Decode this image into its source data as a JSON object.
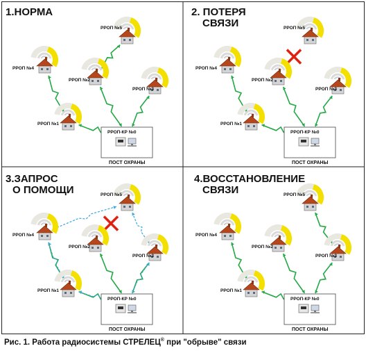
{
  "panels": [
    {
      "title_lines": [
        "1.НОРМА"
      ],
      "post_box": {
        "node": "РРОП-КР №0",
        "post": "ПОСТ ОХРАНЫ"
      },
      "nodes": [
        {
          "id": "n5",
          "label": "РРОП №5"
        },
        {
          "id": "n4",
          "label": "РРОП №4"
        },
        {
          "id": "n2",
          "label": "РРОП №2"
        },
        {
          "id": "n3",
          "label": "РРОП №3"
        },
        {
          "id": "n1",
          "label": "РРОП №1"
        }
      ],
      "links": [
        {
          "from": "n5",
          "to": "n2",
          "kind": "solid"
        },
        {
          "from": "n4",
          "to": "n1",
          "kind": "solid"
        },
        {
          "from": "n2",
          "to": "post",
          "kind": "solid"
        },
        {
          "from": "n3",
          "to": "post",
          "kind": "solid"
        },
        {
          "from": "n1",
          "to": "post",
          "kind": "solid"
        }
      ],
      "broken_links": []
    },
    {
      "title_lines": [
        "2. ПОТЕРЯ",
        "СВЯЗИ"
      ],
      "post_box": {
        "node": "РРОП-КР №0",
        "post": "ПОСТ ОХРАНЫ"
      },
      "nodes": [
        {
          "id": "n5",
          "label": "РРОП №5"
        },
        {
          "id": "n4",
          "label": "РРОП №4"
        },
        {
          "id": "n2",
          "label": "РРОП №2"
        },
        {
          "id": "n3",
          "label": "РРОП №3"
        },
        {
          "id": "n1",
          "label": "РРОП №1"
        }
      ],
      "links": [
        {
          "from": "n4",
          "to": "n1",
          "kind": "solid"
        },
        {
          "from": "n2",
          "to": "post",
          "kind": "solid"
        },
        {
          "from": "n3",
          "to": "post",
          "kind": "solid"
        },
        {
          "from": "n1",
          "to": "post",
          "kind": "solid"
        }
      ],
      "broken_links": [
        {
          "from": "n5",
          "to": "n2"
        }
      ]
    },
    {
      "title_lines": [
        "3.ЗАПРОС",
        "О ПОМОЩИ"
      ],
      "post_box": {
        "node": "РРОП-КР №0",
        "post": "ПОСТ ОХРАНЫ"
      },
      "nodes": [
        {
          "id": "n5",
          "label": "РРОП №5"
        },
        {
          "id": "n4",
          "label": "РРОП №4"
        },
        {
          "id": "n2",
          "label": "РРОП №2"
        },
        {
          "id": "n3",
          "label": "РРОП №3"
        },
        {
          "id": "n1",
          "label": "РРОП №1"
        }
      ],
      "links": [
        {
          "from": "n4",
          "to": "n1",
          "kind": "solid"
        },
        {
          "from": "n2",
          "to": "post",
          "kind": "solid"
        },
        {
          "from": "n3",
          "to": "post",
          "kind": "solid"
        },
        {
          "from": "n1",
          "to": "post",
          "kind": "solid"
        },
        {
          "from": "n5",
          "to": "n4",
          "kind": "dashed"
        },
        {
          "from": "n5",
          "to": "n3",
          "kind": "dashed"
        },
        {
          "from": "n4",
          "to": "n1",
          "kind": "dashed"
        },
        {
          "from": "n3",
          "to": "post",
          "kind": "dashed"
        },
        {
          "from": "n1",
          "to": "post",
          "kind": "dashed"
        }
      ],
      "broken_links": [
        {
          "from": "n5",
          "to": "n2"
        }
      ]
    },
    {
      "title_lines": [
        "4.ВОССТАНОВЛЕНИЕ",
        "СВЯЗИ"
      ],
      "post_box": {
        "node": "РРОП-КР №0",
        "post": "ПОСТ ОХРАНЫ"
      },
      "nodes": [
        {
          "id": "n5",
          "label": "РРОП №5"
        },
        {
          "id": "n4",
          "label": "РРОП №4"
        },
        {
          "id": "n2",
          "label": "РРОП №2"
        },
        {
          "id": "n3",
          "label": "РРОП №3"
        },
        {
          "id": "n1",
          "label": "РРОП №1"
        }
      ],
      "links": [
        {
          "from": "n5",
          "to": "n3",
          "kind": "solid"
        },
        {
          "from": "n4",
          "to": "n1",
          "kind": "solid"
        },
        {
          "from": "n2",
          "to": "post",
          "kind": "solid"
        },
        {
          "from": "n3",
          "to": "post",
          "kind": "solid"
        },
        {
          "from": "n1",
          "to": "post",
          "kind": "solid"
        }
      ],
      "broken_links": []
    }
  ],
  "caption": {
    "prefix": "Рис. 1.  Работа радиосистемы СТРЕЛЕЦ",
    "mark": "®",
    "suffix": " при \"обрыве\" связи"
  },
  "colors": {
    "ring": "#f3e000",
    "link": "#22a845",
    "dashed": "#3aa6dd",
    "cross": "#dd2211",
    "roof": "#b6461c",
    "wall": "#d4d4d4"
  }
}
